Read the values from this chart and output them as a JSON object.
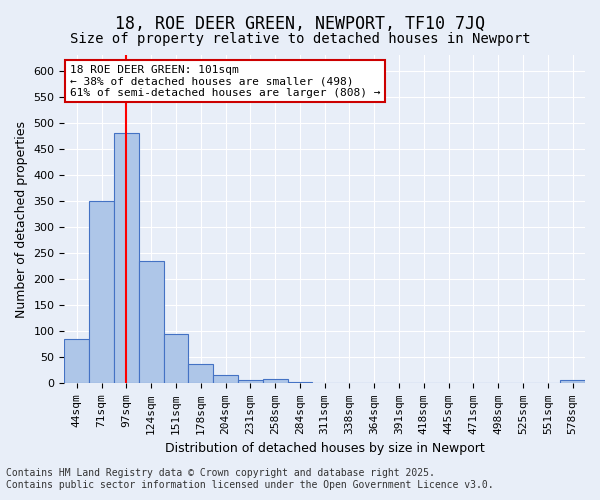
{
  "title": "18, ROE DEER GREEN, NEWPORT, TF10 7JQ",
  "subtitle": "Size of property relative to detached houses in Newport",
  "xlabel": "Distribution of detached houses by size in Newport",
  "ylabel": "Number of detached properties",
  "bin_labels": [
    "44sqm",
    "71sqm",
    "97sqm",
    "124sqm",
    "151sqm",
    "178sqm",
    "204sqm",
    "231sqm",
    "258sqm",
    "284sqm",
    "311sqm",
    "338sqm",
    "364sqm",
    "391sqm",
    "418sqm",
    "445sqm",
    "471sqm",
    "498sqm",
    "525sqm",
    "551sqm",
    "578sqm"
  ],
  "bar_heights": [
    85,
    350,
    480,
    235,
    95,
    37,
    17,
    6,
    8,
    2,
    1,
    0,
    0,
    1,
    0,
    0,
    0,
    0,
    0,
    0,
    6
  ],
  "bar_color": "#aec6e8",
  "bar_edge_color": "#4472c4",
  "red_line_index": 2,
  "annotation_text": "18 ROE DEER GREEN: 101sqm\n← 38% of detached houses are smaller (498)\n61% of semi-detached houses are larger (808) →",
  "annotation_box_color": "#ffffff",
  "annotation_box_edge_color": "#cc0000",
  "ylim": [
    0,
    630
  ],
  "yticks": [
    0,
    50,
    100,
    150,
    200,
    250,
    300,
    350,
    400,
    450,
    500,
    550,
    600
  ],
  "footer_line1": "Contains HM Land Registry data © Crown copyright and database right 2025.",
  "footer_line2": "Contains public sector information licensed under the Open Government Licence v3.0.",
  "background_color": "#e8eef8",
  "plot_bg_color": "#e8eef8",
  "grid_color": "#ffffff",
  "title_fontsize": 12,
  "subtitle_fontsize": 10,
  "axis_label_fontsize": 9,
  "tick_fontsize": 8,
  "footer_fontsize": 7,
  "annotation_fontsize": 8
}
